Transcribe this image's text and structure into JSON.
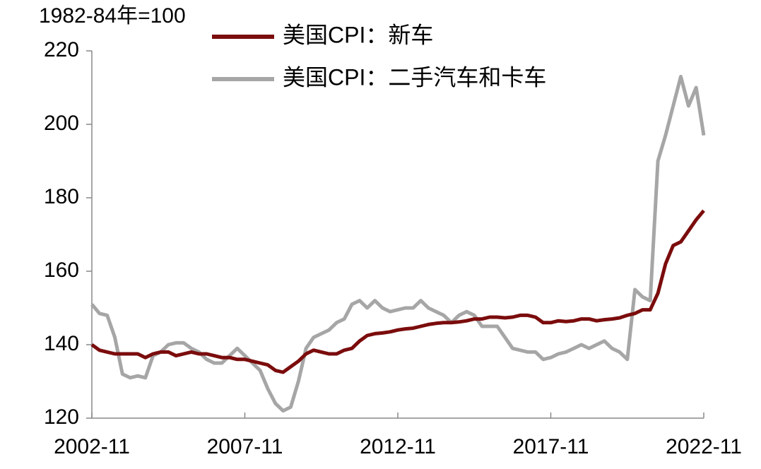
{
  "chart_data": {
    "type": "line",
    "ylabel": "1982-84年=100",
    "categories": [
      "2002-11",
      null,
      null,
      null,
      null,
      null,
      null,
      null,
      null,
      null,
      null,
      null,
      null,
      null,
      null,
      null,
      null,
      null,
      null,
      null,
      "2007-11",
      null,
      null,
      null,
      null,
      null,
      null,
      null,
      null,
      null,
      null,
      null,
      null,
      null,
      null,
      null,
      null,
      null,
      null,
      null,
      "2012-11",
      null,
      null,
      null,
      null,
      null,
      null,
      null,
      null,
      null,
      null,
      null,
      null,
      null,
      null,
      null,
      null,
      null,
      null,
      null,
      "2017-11",
      null,
      null,
      null,
      null,
      null,
      null,
      null,
      null,
      null,
      null,
      null,
      null,
      null,
      null,
      null,
      null,
      null,
      null,
      null,
      "2022-11"
    ],
    "series": [
      {
        "name": "美国CPI：新车",
        "color": "#7b0c0c",
        "values": [
          140,
          138.5,
          138,
          137.5,
          137.5,
          137.5,
          137.5,
          136.5,
          137.5,
          138,
          138,
          137,
          137.5,
          138,
          137.5,
          137.5,
          137,
          136.5,
          136.5,
          136,
          136,
          135.5,
          135,
          134.5,
          133,
          132.5,
          134,
          135.5,
          137.5,
          138.5,
          138,
          137.5,
          137.5,
          138.5,
          139,
          141,
          142.5,
          143,
          143.2,
          143.5,
          144,
          144.3,
          144.5,
          145,
          145.5,
          145.8,
          146,
          146,
          146.2,
          146.5,
          147,
          147,
          147.5,
          147.5,
          147.3,
          147.5,
          148,
          148,
          147.5,
          146,
          146,
          146.5,
          146.3,
          146.5,
          147,
          147,
          146.5,
          146.8,
          147,
          147.3,
          148,
          148.5,
          149.5,
          149.5,
          154,
          162,
          167,
          168,
          171,
          174,
          176.5
        ]
      },
      {
        "name": "美国CPI：二手汽车和卡车",
        "color": "#a6a6a6",
        "values": [
          151,
          148.5,
          148,
          142,
          132,
          131,
          131.5,
          131,
          137,
          138,
          140,
          140.5,
          140.5,
          139,
          138,
          136,
          135,
          135,
          137,
          139,
          137,
          135,
          133,
          128,
          124,
          122,
          123,
          130,
          139,
          142,
          143,
          144,
          146,
          147,
          151,
          152,
          150,
          152,
          150,
          149,
          149.5,
          150,
          150,
          152,
          150,
          149,
          148,
          146,
          148,
          149,
          148,
          145,
          145,
          145,
          142,
          139,
          138.5,
          138,
          138,
          136,
          136.5,
          137.5,
          138,
          139,
          140,
          139,
          140,
          141,
          139,
          138,
          136,
          155,
          153,
          152,
          190,
          197,
          205,
          213,
          205,
          210,
          197
        ]
      }
    ],
    "ylim": [
      120,
      220
    ],
    "yticks": [
      120,
      140,
      160,
      180,
      200,
      220
    ]
  }
}
